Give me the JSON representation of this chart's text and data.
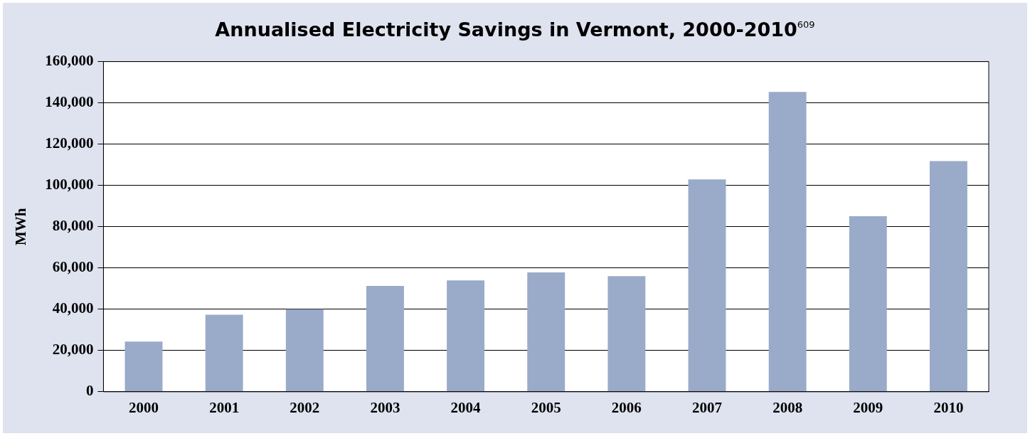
{
  "chart_data": {
    "type": "bar",
    "title": "Annualised Electricity Savings in Vermont, 2000-2010$^{609}$",
    "ylabel": "MWh",
    "categories": [
      "2000",
      "2001",
      "2002",
      "2003",
      "2004",
      "2005",
      "2006",
      "2007",
      "2008",
      "2009",
      "2010"
    ],
    "values": [
      24300,
      37300,
      40000,
      51300,
      54000,
      57800,
      56000,
      102900,
      145300,
      85100,
      111800
    ],
    "color": "#9aaac9",
    "ylim": [
      0,
      160000
    ],
    "yticks": [
      0,
      {
        "value": 20000,
        "label": "20,000"
      },
      {
        "value": 40000,
        "label": "40,000"
      },
      {
        "value": 60000,
        "label": "60,000"
      },
      {
        "value": 80000,
        "label": "80,000"
      },
      {
        "value": 100000,
        "label": "100,000"
      },
      {
        "value": 120000,
        "label": "120,000"
      },
      {
        "value": 140000,
        "label": "140,000"
      },
      {
        "value": 160000,
        "label": "160,000"
      }
    ],
    "grid": "y",
    "legend": false
  }
}
